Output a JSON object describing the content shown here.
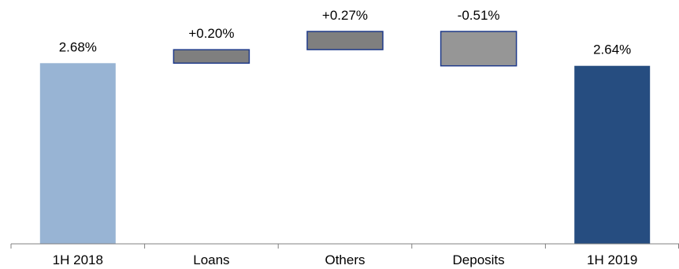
{
  "chart_data": {
    "type": "waterfall",
    "title": "",
    "xlabel": "",
    "ylabel": "",
    "categories": [
      "1H 2018",
      "Loans",
      "Others",
      "Deposits",
      "1H 2019"
    ],
    "values": [
      2.68,
      0.2,
      0.27,
      -0.51,
      2.64
    ],
    "kinds": [
      "total",
      "delta",
      "delta",
      "delta",
      "total"
    ],
    "labels": [
      "2.68%",
      "+0.20%",
      "+0.27%",
      "-0.51%",
      "2.64%"
    ],
    "ylim": [
      0,
      3.5
    ],
    "grid": false,
    "legend": "none",
    "colors": {
      "start": "#98b4d4",
      "end": "#264d80",
      "up": "#7f7f7f",
      "down": "#969696",
      "delta_border": "#1f3a8a",
      "axis": "#808080"
    }
  }
}
